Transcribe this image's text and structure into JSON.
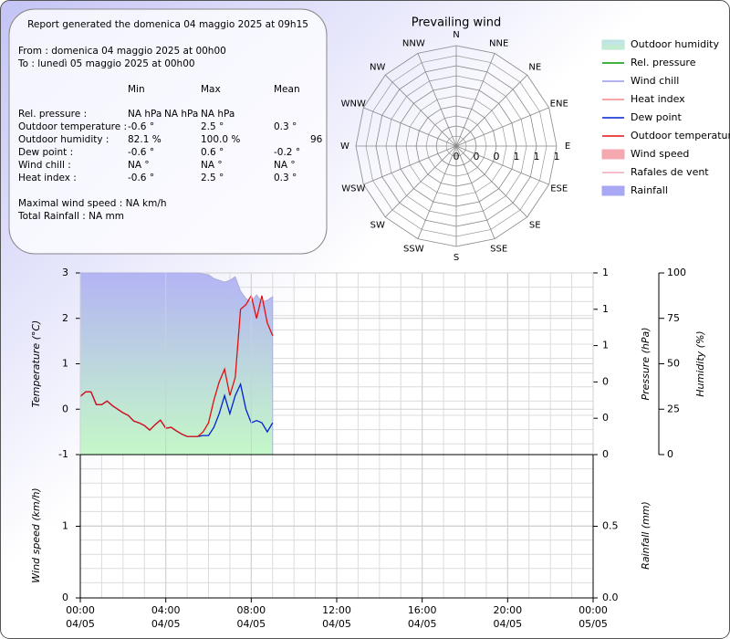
{
  "report": {
    "title": "Report generated the domenica 04 maggio 2025 at 09h15",
    "from": "From : domenica 04 maggio 2025 at 00h00",
    "to": "To : lunedì 05 maggio 2025 at 00h00",
    "columns": [
      "Min",
      "Max",
      "Mean"
    ],
    "rows": [
      {
        "label": "Rel. pressure :",
        "cells": [
          "NA hPa",
          "NA hPa",
          "NA hPa"
        ]
      },
      {
        "label": "Outdoor temperature :",
        "cells": [
          "-0.6 °",
          "2.5 °",
          "0.3 °"
        ]
      },
      {
        "label": "Outdoor humidity :",
        "cells": [
          "82.1 %",
          "100.0 %",
          "96"
        ]
      },
      {
        "label": "Dew point :",
        "cells": [
          "-0.6 °",
          "0.6 °",
          "-0.2 °"
        ]
      },
      {
        "label": "Wind chill :",
        "cells": [
          "NA °",
          "NA °",
          "NA °"
        ]
      },
      {
        "label": "Heat index :",
        "cells": [
          "-0.6 °",
          "2.5 °",
          "0.3 °"
        ]
      }
    ],
    "footer": [
      "Maximal wind speed : NA km/h",
      "Total Rainfall : NA mm"
    ]
  },
  "legend": [
    {
      "name": "Outdoor humidity",
      "color": "#b8e4d8",
      "style": "area"
    },
    {
      "name": "Rel. pressure",
      "color": "#009900",
      "style": "line"
    },
    {
      "name": "Wind chill",
      "color": "#9999ee",
      "style": "line"
    },
    {
      "name": "Heat index",
      "color": "#f08888",
      "style": "line"
    },
    {
      "name": "Dew point",
      "color": "#0022cc",
      "style": "line"
    },
    {
      "name": "Outdoor temperature",
      "color": "#e01010",
      "style": "line"
    },
    {
      "name": "Wind speed",
      "color": "#f4a8b0",
      "style": "box"
    },
    {
      "name": "Rafales de vent",
      "color": "#f0a8b8",
      "style": "line"
    },
    {
      "name": "Rainfall",
      "color": "#a8a8f4",
      "style": "box"
    }
  ],
  "chart_data": [
    {
      "type": "polar",
      "title": "Prevailing wind",
      "directions": [
        "N",
        "NNE",
        "NE",
        "ENE",
        "E",
        "ESE",
        "SE",
        "SSE",
        "S",
        "SSW",
        "SW",
        "WSW",
        "W",
        "WNW",
        "NW",
        "NNW"
      ],
      "rlim": [
        0,
        1
      ],
      "rticks": [
        {
          "value": 0,
          "label": "0"
        },
        {
          "value": 0.2,
          "label": "0"
        },
        {
          "value": 0.4,
          "label": "0"
        },
        {
          "value": 0.6,
          "label": "1"
        },
        {
          "value": 0.8,
          "label": "1"
        },
        {
          "value": 1,
          "label": "1"
        }
      ]
    },
    {
      "type": "line",
      "xlim": [
        0,
        24
      ],
      "x": [
        0,
        0.25,
        0.5,
        0.75,
        1,
        1.25,
        1.5,
        1.75,
        2,
        2.25,
        2.5,
        2.75,
        3,
        3.25,
        3.5,
        3.75,
        4,
        4.25,
        4.5,
        4.75,
        5,
        5.25,
        5.5,
        5.75,
        6,
        6.25,
        6.5,
        6.75,
        7,
        7.25,
        7.5,
        7.75,
        8,
        8.25,
        8.5,
        8.75,
        9
      ],
      "ylim": [
        -1,
        3
      ],
      "yticks": [
        -1,
        0,
        1,
        2,
        3
      ],
      "ylabel": "Temperature (°C)",
      "y2lim": [
        0,
        1
      ],
      "y2ticks": [
        {
          "value": 0,
          "label": "0"
        },
        {
          "value": 0.2,
          "label": "0"
        },
        {
          "value": 0.4,
          "label": "0"
        },
        {
          "value": 0.6,
          "label": "1"
        },
        {
          "value": 0.8,
          "label": "1"
        },
        {
          "value": 1,
          "label": "1"
        }
      ],
      "y2label": "Pressure (hPa)",
      "y3lim": [
        0,
        100
      ],
      "y3ticks": [
        0,
        25,
        50,
        75,
        100
      ],
      "y3label": "Humidity (%)",
      "grid": true,
      "series": [
        {
          "style": "area",
          "axis": "y3",
          "color": "#a8a8d8",
          "values": [
            100,
            100,
            100,
            100,
            100,
            100,
            100,
            100,
            100,
            100,
            100,
            100,
            100,
            100,
            100,
            100,
            100,
            100,
            100,
            100,
            100,
            100,
            100,
            99.5,
            99,
            97,
            96,
            95,
            96,
            98,
            90,
            86,
            84,
            88,
            84,
            85,
            87
          ]
        },
        {
          "style": "line",
          "axis": "y",
          "color": "#0022cc",
          "values": [
            0.28,
            0.38,
            0.38,
            0.1,
            0.1,
            0.18,
            0.08,
            0,
            -0.08,
            -0.14,
            -0.26,
            -0.3,
            -0.36,
            -0.46,
            -0.34,
            -0.24,
            -0.42,
            -0.4,
            -0.48,
            -0.55,
            -0.6,
            -0.6,
            -0.6,
            -0.58,
            -0.58,
            -0.4,
            -0.1,
            0.3,
            -0.1,
            0.3,
            0.55,
            0,
            -0.3,
            -0.25,
            -0.3,
            -0.5,
            -0.3
          ]
        },
        {
          "style": "line",
          "axis": "y",
          "color": "#e01010",
          "values": [
            0.28,
            0.38,
            0.38,
            0.1,
            0.1,
            0.18,
            0.08,
            0,
            -0.08,
            -0.14,
            -0.26,
            -0.3,
            -0.36,
            -0.46,
            -0.34,
            -0.24,
            -0.42,
            -0.4,
            -0.48,
            -0.55,
            -0.6,
            -0.6,
            -0.6,
            -0.5,
            -0.3,
            0.2,
            0.6,
            0.88,
            0.3,
            0.7,
            2.2,
            2.3,
            2.5,
            2,
            2.5,
            1.9,
            1.62
          ]
        }
      ]
    },
    {
      "type": "line",
      "xlim": [
        0,
        24
      ],
      "xticks": [
        {
          "value": 0,
          "label": [
            "00:00",
            "04/05"
          ]
        },
        {
          "value": 4,
          "label": [
            "04:00",
            "04/05"
          ]
        },
        {
          "value": 8,
          "label": [
            "08:00",
            "04/05"
          ]
        },
        {
          "value": 12,
          "label": [
            "12:00",
            "04/05"
          ]
        },
        {
          "value": 16,
          "label": [
            "16:00",
            "04/05"
          ]
        },
        {
          "value": 20,
          "label": [
            "20:00",
            "04/05"
          ]
        },
        {
          "value": 24,
          "label": [
            "00:00",
            "05/05"
          ]
        }
      ],
      "ylim": [
        0,
        2
      ],
      "yticks": [
        0,
        1
      ],
      "ylabel": "Wind speed (km/h)",
      "y2lim": [
        0,
        1
      ],
      "y2ticks": [
        {
          "value": 0,
          "label": "0.0"
        },
        0.5
      ],
      "y2label": "Rainfall (mm)",
      "grid": true
    }
  ]
}
